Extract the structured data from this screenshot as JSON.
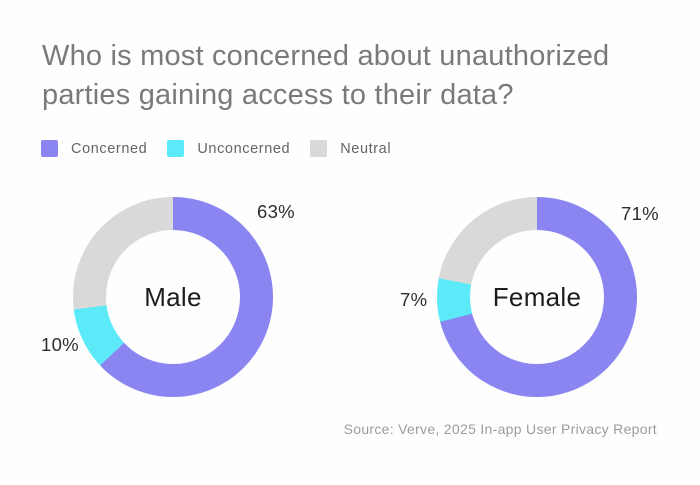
{
  "header": {
    "title": "Who is most concerned about unauthorized parties gaining access to their data?"
  },
  "chart_data": {
    "type": "pie",
    "variant": "donut",
    "title": "Who is most concerned about unauthorized parties gaining access to their data?",
    "categories": [
      "Concerned",
      "Unconcerned",
      "Neutral"
    ],
    "colors": [
      "#8a85f1",
      "#5ce9f8",
      "#d9d9d9"
    ],
    "start_angle": "top",
    "direction": "clockwise",
    "legend_position": "top-left",
    "charts": [
      {
        "center_label": "Male",
        "values": [
          63,
          10,
          27
        ],
        "data_labels": [
          "63%",
          "10%"
        ]
      },
      {
        "center_label": "Female",
        "values": [
          71,
          7,
          22
        ],
        "data_labels": [
          "71%",
          "7%"
        ]
      }
    ]
  },
  "footer": {
    "source": "Source: Verve, 2025 In-app User Privacy Report"
  }
}
